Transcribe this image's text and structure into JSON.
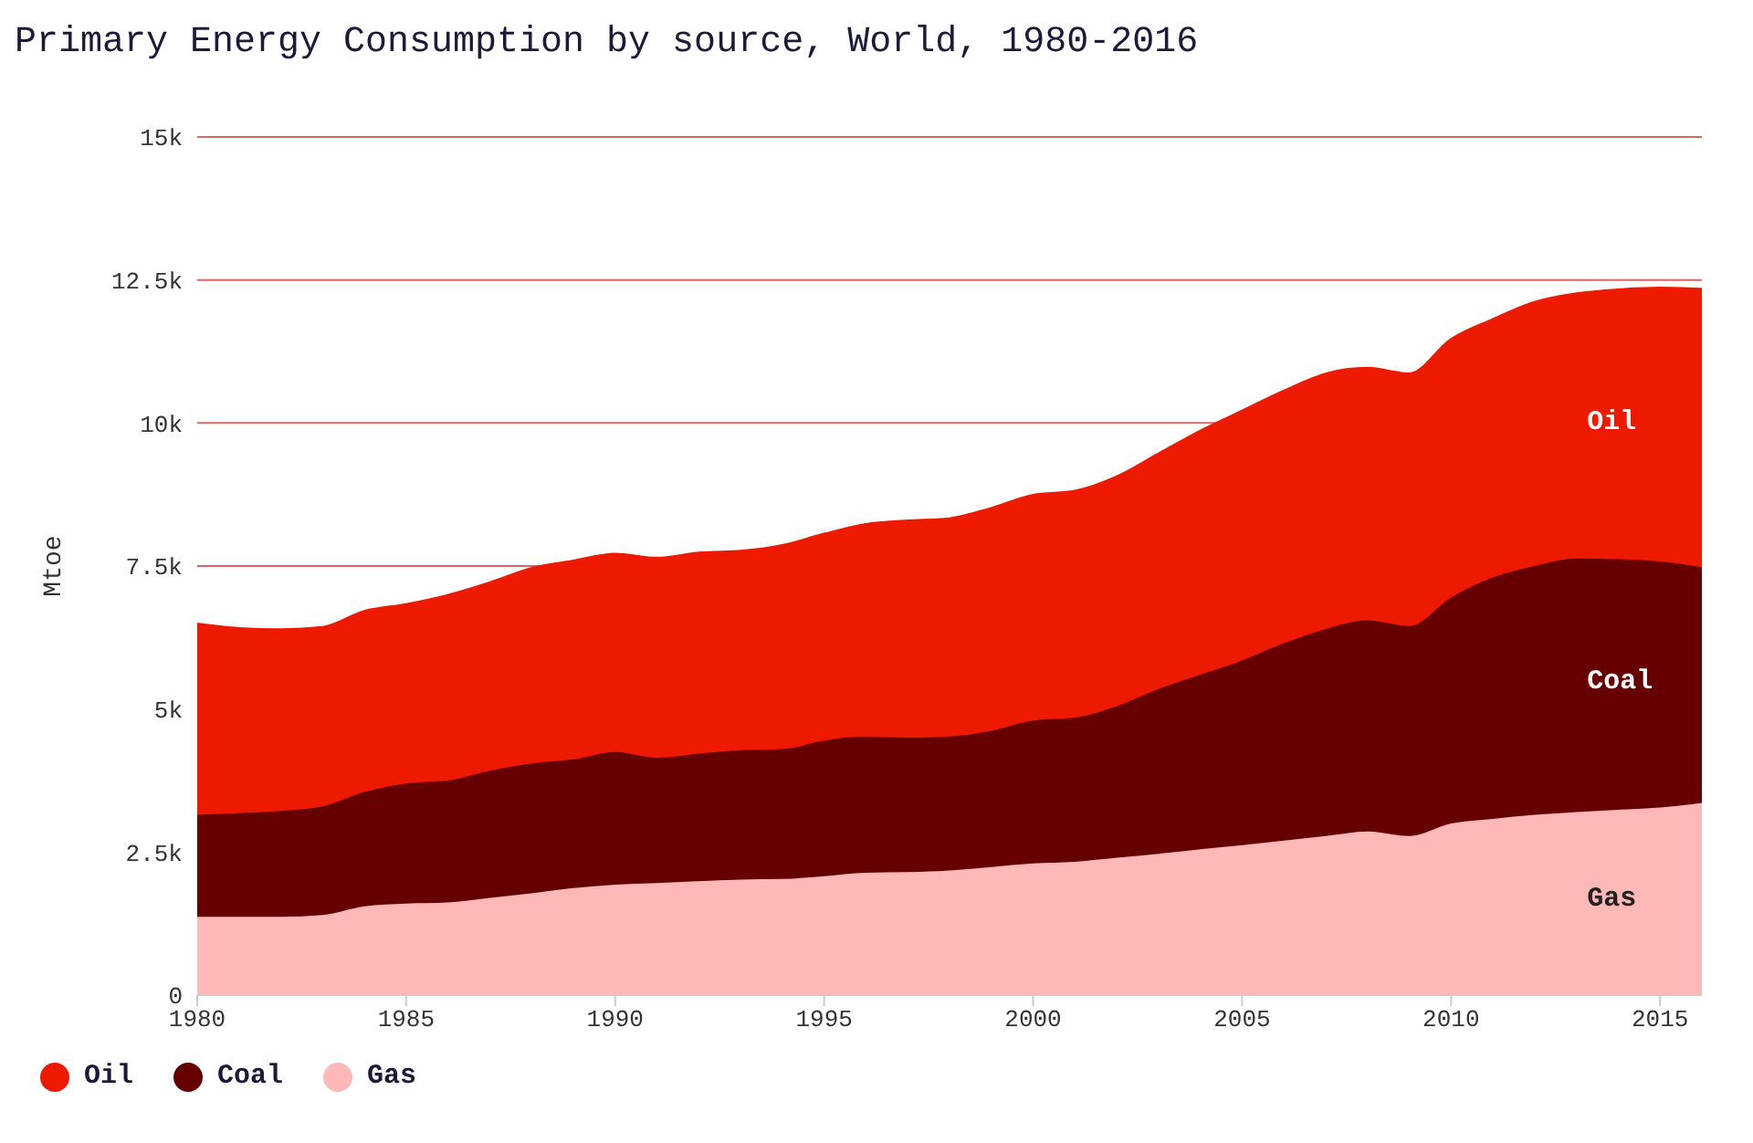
{
  "chart_data": {
    "type": "area",
    "title": "Primary Energy Consumption by source, World, 1980-2016",
    "ylabel": "Mtoe",
    "stacked": true,
    "grid": "y",
    "legend": "bottom left",
    "x": [
      1980,
      1981,
      1982,
      1983,
      1984,
      1985,
      1986,
      1987,
      1988,
      1989,
      1990,
      1991,
      1992,
      1993,
      1994,
      1995,
      1996,
      1997,
      1998,
      1999,
      2000,
      2001,
      2002,
      2003,
      2004,
      2005,
      2006,
      2007,
      2008,
      2009,
      2010,
      2011,
      2012,
      2013,
      2014,
      2015,
      2016
    ],
    "xlim": [
      1980,
      2016
    ],
    "xticks": [
      1980,
      1985,
      1990,
      1995,
      2000,
      2005,
      2010,
      2015
    ],
    "ylim": [
      0,
      15000
    ],
    "yticks": [
      0,
      {
        "value": 2500,
        "label": "2.5k"
      },
      {
        "value": 5000,
        "label": "5k"
      },
      {
        "value": 7500,
        "label": "7.5k"
      },
      {
        "value": 10000,
        "label": "10k"
      },
      {
        "value": 12500,
        "label": "12.5k"
      },
      {
        "value": 15000,
        "label": "15k"
      }
    ],
    "series": [
      {
        "name": "Gas",
        "color": "#ffb8b8",
        "values": [
          1370,
          1370,
          1370,
          1400,
          1550,
          1600,
          1620,
          1700,
          1780,
          1870,
          1930,
          1960,
          1990,
          2020,
          2030,
          2080,
          2140,
          2150,
          2180,
          2240,
          2300,
          2330,
          2400,
          2470,
          2550,
          2620,
          2700,
          2780,
          2860,
          2780,
          3000,
          3080,
          3150,
          3200,
          3240,
          3280,
          3360
        ]
      },
      {
        "name": "Coal",
        "color": "#660000",
        "values": [
          1780,
          1810,
          1850,
          1900,
          2000,
          2100,
          2130,
          2220,
          2270,
          2250,
          2320,
          2190,
          2230,
          2260,
          2270,
          2370,
          2380,
          2350,
          2340,
          2380,
          2500,
          2520,
          2650,
          2880,
          3050,
          3230,
          3450,
          3620,
          3690,
          3670,
          3950,
          4220,
          4350,
          4430,
          4380,
          4300,
          4120
        ]
      },
      {
        "name": "Oil",
        "color": "#ee1a00",
        "values": [
          3330,
          3220,
          3160,
          3120,
          3150,
          3120,
          3230,
          3280,
          3400,
          3460,
          3450,
          3480,
          3500,
          3470,
          3550,
          3600,
          3700,
          3780,
          3800,
          3880,
          3930,
          3950,
          4000,
          4100,
          4250,
          4350,
          4400,
          4450,
          4400,
          4400,
          4500,
          4500,
          4600,
          4620,
          4700,
          4770,
          4850
        ]
      }
    ]
  }
}
